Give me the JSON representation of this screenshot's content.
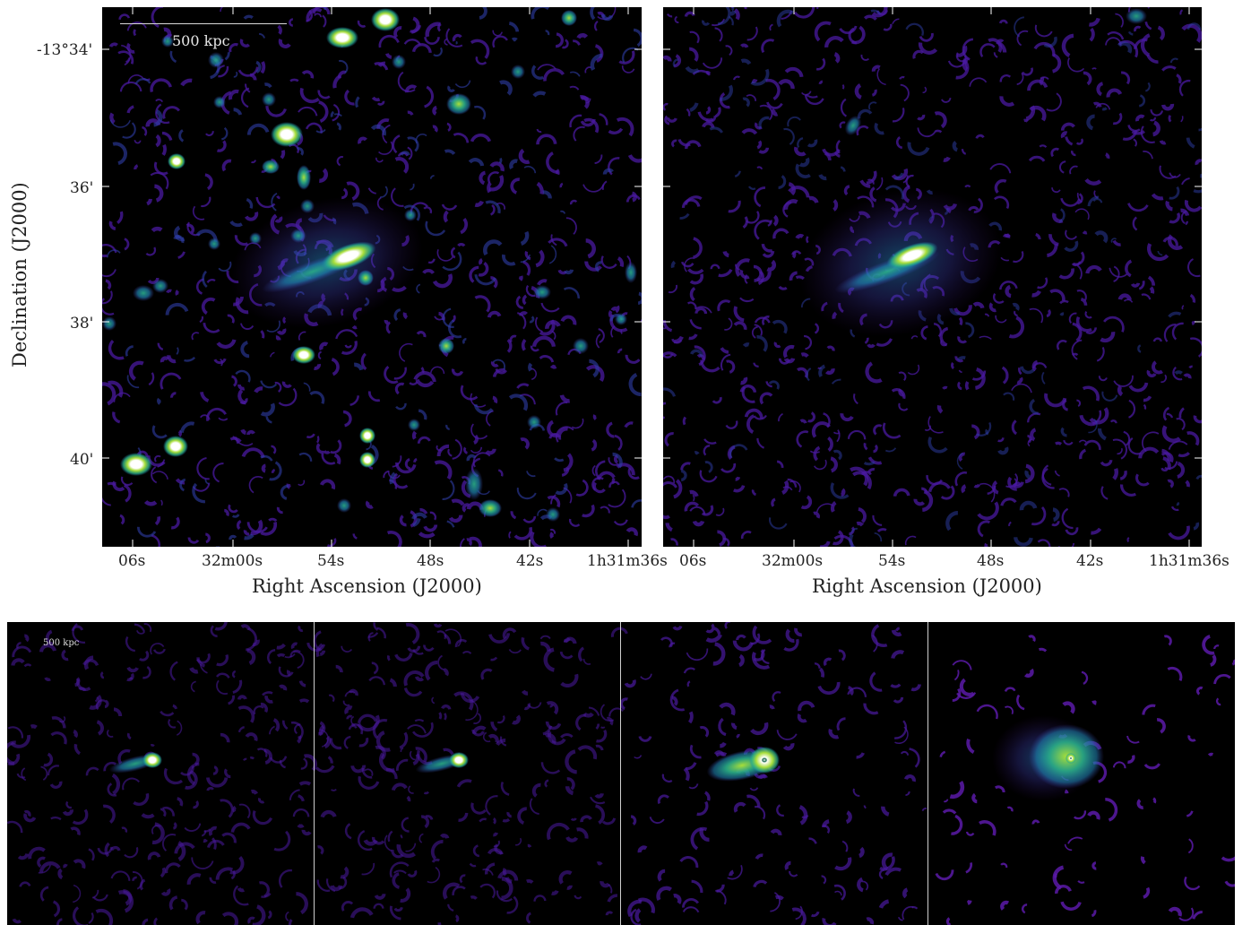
{
  "figure": {
    "top_left_panel": {
      "scalebar": "500 kpc",
      "y_ticks": [
        "-13°34'",
        "36'",
        "38'",
        "40'"
      ],
      "x_ticks": [
        "06s",
        "32m00s",
        "54s",
        "48s",
        "42s",
        "1h31m36s"
      ],
      "xlabel": "Right Ascension (J2000)",
      "ylabel": "Declination (J2000)"
    },
    "top_right_panel": {
      "x_ticks": [
        "06s",
        "32m00s",
        "54s",
        "48s",
        "42s",
        "1h31m36s"
      ],
      "xlabel": "Right Ascension (J2000)"
    },
    "bottom_row": {
      "scalebar": "500 kpc",
      "panel_count": 4
    }
  },
  "colors": {
    "colormap": [
      "#000000",
      "#3a0a6e",
      "#3b3ba8",
      "#1f7fae",
      "#2bb08a",
      "#a8de3a",
      "#ffffff"
    ],
    "background": "#000000",
    "noise": "#4a1aa0"
  }
}
